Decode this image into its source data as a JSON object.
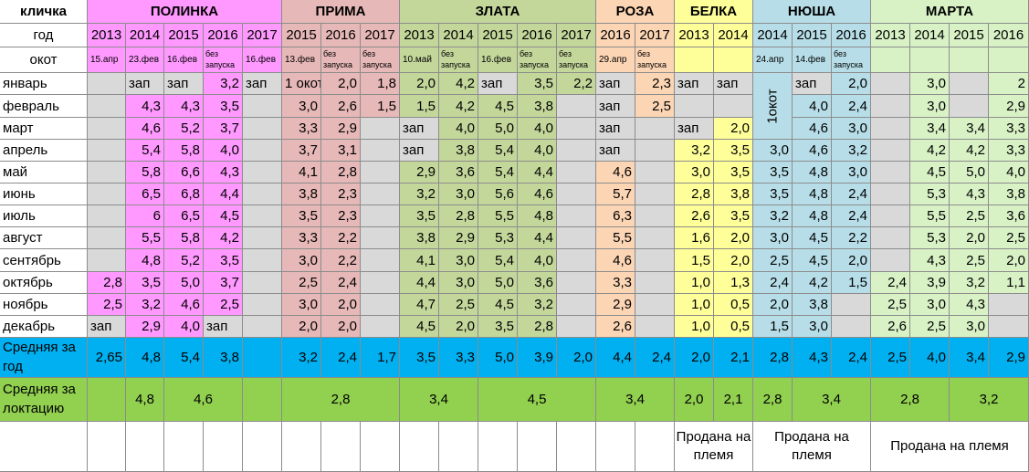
{
  "labels": {
    "name_header": "кличка",
    "year_header": "год",
    "okot_header": "окот",
    "avg_year": "Средняя за год",
    "avg_lact": "Средняя за локтацию"
  },
  "months": [
    "январь",
    "февраль",
    "март",
    "апрель",
    "май",
    "июнь",
    "июль",
    "август",
    "сентябрь",
    "октябрь",
    "ноябрь",
    "декабрь"
  ],
  "colors": {
    "polinka": "#ff99ff",
    "prima": "#e6b8b7",
    "zlata": "#c4d79b",
    "roza": "#fcd5b4",
    "belka": "#ffff99",
    "nyusha": "#b7dee8",
    "marta": "#d8f2c6",
    "grey": "#d9d9d9",
    "blue_row": "#00b0f0",
    "green_row": "#92d050",
    "white": "#ffffff"
  },
  "goats": [
    {
      "name": "ПОЛИНКА",
      "color": "polinka",
      "years": [
        "2013",
        "2014",
        "2015",
        "2016",
        "2017"
      ],
      "okot": [
        "15.апр",
        "23.фев",
        "16.фев",
        "без запуска",
        "16.фев"
      ],
      "months": [
        [
          "",
          "зап",
          "зап",
          "3,2",
          "зап"
        ],
        [
          "",
          "4,3",
          "4,3",
          "3,5",
          ""
        ],
        [
          "",
          "4,6",
          "5,2",
          "3,7",
          ""
        ],
        [
          "",
          "5,4",
          "5,8",
          "4,0",
          ""
        ],
        [
          "",
          "5,8",
          "6,6",
          "4,3",
          ""
        ],
        [
          "",
          "6,5",
          "6,8",
          "4,4",
          ""
        ],
        [
          "",
          "6",
          "6,5",
          "4,5",
          ""
        ],
        [
          "",
          "5,5",
          "5,8",
          "4,2",
          ""
        ],
        [
          "",
          "4,8",
          "5,2",
          "3,5",
          ""
        ],
        [
          "2,8",
          "3,5",
          "5,0",
          "3,7",
          ""
        ],
        [
          "2,5",
          "3,2",
          "4,6",
          "2,5",
          ""
        ],
        [
          "зап",
          "2,9",
          "4,0",
          "зап",
          ""
        ]
      ],
      "avg_year": [
        "2,65",
        "4,8",
        "5,4",
        "3,8",
        ""
      ],
      "avg_lact": [
        {
          "span": 1,
          "v": ""
        },
        {
          "span": 1,
          "v": "4,8"
        },
        {
          "span": 2,
          "v": "4,6"
        },
        {
          "span": 1,
          "v": ""
        }
      ],
      "note": ""
    },
    {
      "name": "ПРИМА",
      "color": "prima",
      "years": [
        "2015",
        "2016",
        "2017"
      ],
      "okot": [
        "13.фев",
        "без запуска",
        "без запуска"
      ],
      "months": [
        [
          "1 окот",
          "2,0",
          "1,8"
        ],
        [
          "3,0",
          "2,6",
          "1,5"
        ],
        [
          "3,3",
          "2,9",
          ""
        ],
        [
          "3,7",
          "3,1",
          ""
        ],
        [
          "4,1",
          "2,8",
          ""
        ],
        [
          "3,8",
          "2,3",
          ""
        ],
        [
          "3,5",
          "2,3",
          ""
        ],
        [
          "3,3",
          "2,2",
          ""
        ],
        [
          "3,0",
          "2,2",
          ""
        ],
        [
          "2,5",
          "2,4",
          ""
        ],
        [
          "3,0",
          "2,0",
          ""
        ],
        [
          "2,0",
          "2,0",
          ""
        ]
      ],
      "avg_year": [
        "3,2",
        "2,4",
        "1,7"
      ],
      "avg_lact": [
        {
          "span": 3,
          "v": "2,8"
        }
      ],
      "note": ""
    },
    {
      "name": "ЗЛАТА",
      "color": "zlata",
      "years": [
        "2013",
        "2014",
        "2015",
        "2016",
        "2017"
      ],
      "okot": [
        "10.май",
        "без запуска",
        "16.фев",
        "без запуска",
        "без запуска"
      ],
      "months": [
        [
          "2,0",
          "4,2",
          "зап",
          "3,5",
          "2,2"
        ],
        [
          "1,5",
          "4,2",
          "4,5",
          "3,8",
          ""
        ],
        [
          "зап",
          "4,0",
          "5,0",
          "4,0",
          ""
        ],
        [
          "зап",
          "3,8",
          "5,4",
          "4,0",
          ""
        ],
        [
          "2,9",
          "3,6",
          "5,4",
          "4,4",
          ""
        ],
        [
          "3,2",
          "3,0",
          "5,6",
          "4,6",
          ""
        ],
        [
          "3,5",
          "2,8",
          "5,5",
          "4,8",
          ""
        ],
        [
          "3,8",
          "2,9",
          "5,3",
          "4,4",
          ""
        ],
        [
          "4,1",
          "3,0",
          "5,4",
          "4,0",
          ""
        ],
        [
          "4,4",
          "3,0",
          "5,0",
          "3,6",
          ""
        ],
        [
          "4,7",
          "2,5",
          "4,5",
          "3,2",
          ""
        ],
        [
          "4,5",
          "2,0",
          "3,5",
          "2,8",
          ""
        ]
      ],
      "avg_year": [
        "3,5",
        "3,3",
        "5,0",
        "3,9",
        "2,0"
      ],
      "avg_lact": [
        {
          "span": 2,
          "v": "3,4"
        },
        {
          "span": 3,
          "v": "4,5"
        }
      ],
      "note": ""
    },
    {
      "name": "РОЗА",
      "color": "roza",
      "years": [
        "2016",
        "2017"
      ],
      "okot": [
        "29.апр",
        "без запуска"
      ],
      "months": [
        [
          "зап",
          "2,3"
        ],
        [
          "зап",
          "2,5"
        ],
        [
          "зап",
          ""
        ],
        [
          "зап",
          ""
        ],
        [
          "4,6",
          ""
        ],
        [
          "5,7",
          ""
        ],
        [
          "6,3",
          ""
        ],
        [
          "5,5",
          ""
        ],
        [
          "4,6",
          ""
        ],
        [
          "3,3",
          ""
        ],
        [
          "2,9",
          ""
        ],
        [
          "2,6",
          ""
        ]
      ],
      "avg_year": [
        "4,4",
        "2,4"
      ],
      "avg_lact": [
        {
          "span": 2,
          "v": "3,4"
        }
      ],
      "note": ""
    },
    {
      "name": "БЕЛКА",
      "color": "belka",
      "years": [
        "2013",
        "2014"
      ],
      "okot": [
        "",
        ""
      ],
      "months": [
        [
          "зап",
          "зап"
        ],
        [
          "",
          ""
        ],
        [
          "зап",
          "2,0"
        ],
        [
          "3,2",
          "3,5"
        ],
        [
          "3,0",
          "3,5"
        ],
        [
          "2,8",
          "3,8"
        ],
        [
          "2,6",
          "3,5"
        ],
        [
          "1,6",
          "2,0"
        ],
        [
          "1,5",
          "2,0"
        ],
        [
          "1,0",
          "1,3"
        ],
        [
          "1,0",
          "0,5"
        ],
        [
          "1,0",
          "0,5"
        ]
      ],
      "avg_year": [
        "2,0",
        "2,1"
      ],
      "avg_lact": [
        {
          "span": 1,
          "v": "2,0"
        },
        {
          "span": 1,
          "v": "2,1"
        }
      ],
      "note": "Продана на племя"
    },
    {
      "name": "НЮША",
      "color": "nyusha",
      "years": [
        "2014",
        "2015",
        "2016"
      ],
      "okot": [
        "24.апр",
        "14.фев",
        "без запуска"
      ],
      "first_okot": "1окот",
      "months": [
        [
          "",
          "зап",
          "2,0"
        ],
        [
          "",
          "4,0",
          "2,4"
        ],
        [
          "",
          "4,6",
          "3,0"
        ],
        [
          "3,0",
          "4,6",
          "3,2"
        ],
        [
          "3,5",
          "4,8",
          "3,0"
        ],
        [
          "3,5",
          "4,8",
          "2,4"
        ],
        [
          "3,2",
          "4,8",
          "2,4"
        ],
        [
          "3,0",
          "4,5",
          "2,2"
        ],
        [
          "2,5",
          "4,5",
          "2,0"
        ],
        [
          "2,4",
          "4,2",
          "1,5"
        ],
        [
          "2,0",
          "3,8",
          ""
        ],
        [
          "1,5",
          "3,0",
          ""
        ]
      ],
      "avg_year": [
        "2,8",
        "4,3",
        "2,4"
      ],
      "avg_lact": [
        {
          "span": 1,
          "v": "2,8"
        },
        {
          "span": 2,
          "v": "3,4"
        }
      ],
      "note": "Продана на племя"
    },
    {
      "name": "МАРТА",
      "color": "marta",
      "years": [
        "2013",
        "2014",
        "2015",
        "2016"
      ],
      "okot": [
        "",
        "",
        "",
        ""
      ],
      "months": [
        [
          "",
          "3,0",
          "",
          "2"
        ],
        [
          "",
          "3,0",
          "",
          "2,9"
        ],
        [
          "",
          "3,4",
          "3,4",
          "3,3"
        ],
        [
          "",
          "4,2",
          "4,2",
          "3,3"
        ],
        [
          "",
          "4,5",
          "5,0",
          "4,0"
        ],
        [
          "",
          "5,3",
          "4,3",
          "3,8"
        ],
        [
          "",
          "5,5",
          "2,5",
          "3,6"
        ],
        [
          "",
          "5,3",
          "2,0",
          "2,5"
        ],
        [
          "",
          "4,3",
          "2,5",
          "2,0"
        ],
        [
          "2,4",
          "3,9",
          "3,2",
          "1,1"
        ],
        [
          "2,5",
          "3,0",
          "4,3",
          ""
        ],
        [
          "2,6",
          "2,5",
          "3,0",
          ""
        ]
      ],
      "avg_year": [
        "2,5",
        "4,0",
        "3,4",
        "2,9"
      ],
      "avg_lact": [
        {
          "span": 2,
          "v": "2,8"
        },
        {
          "span": 2,
          "v": "3,2"
        }
      ],
      "note": "Продана на племя"
    }
  ]
}
